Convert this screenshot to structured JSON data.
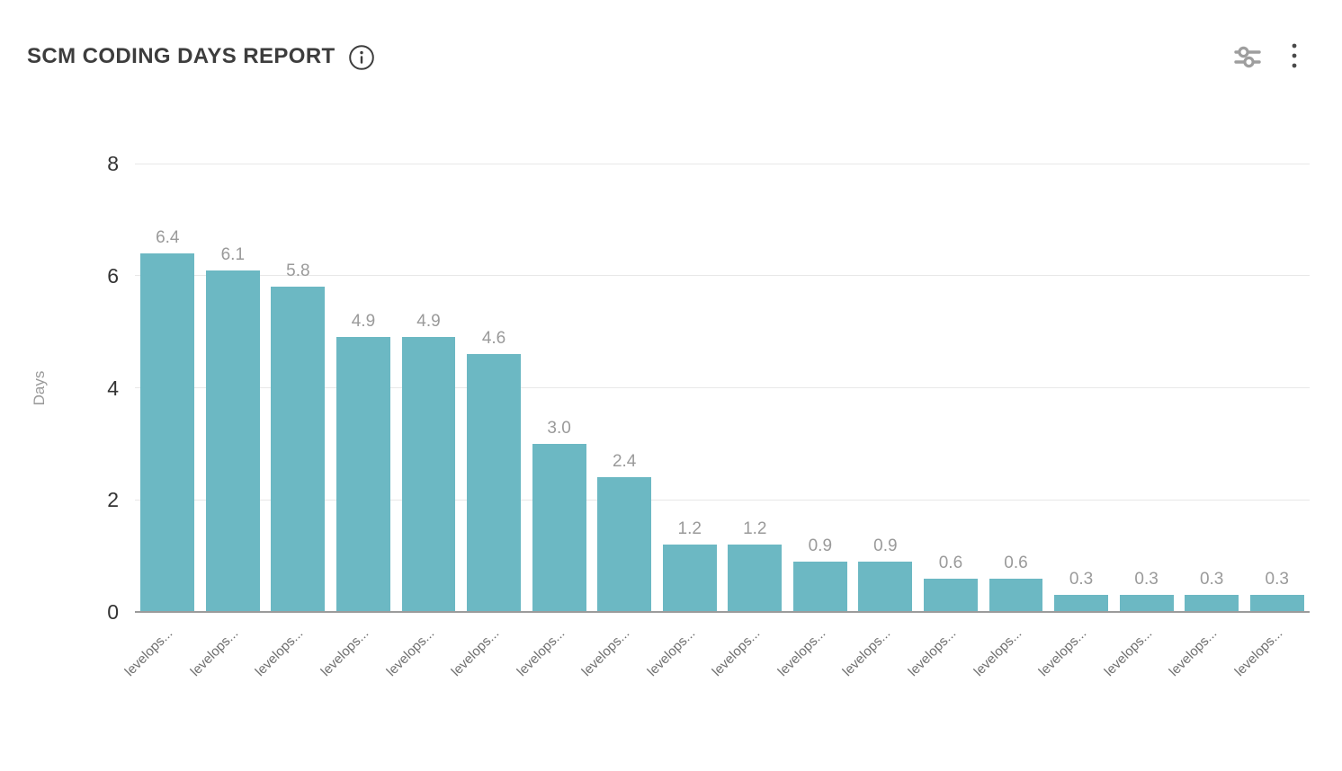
{
  "header": {
    "title": "SCM CODING DAYS REPORT"
  },
  "chart_data": {
    "type": "bar",
    "title": "SCM CODING DAYS REPORT",
    "xlabel": "",
    "ylabel": "Days",
    "ylim": [
      0,
      8
    ],
    "yticks": [
      0,
      2,
      4,
      6,
      8
    ],
    "grid": true,
    "legend": false,
    "bar_color": "#6cb8c3",
    "value_label_color": "#9a9a9a",
    "categories": [
      "levelops...",
      "levelops...",
      "levelops...",
      "levelops...",
      "levelops...",
      "levelops...",
      "levelops...",
      "levelops...",
      "levelops...",
      "levelops...",
      "levelops...",
      "levelops...",
      "levelops...",
      "levelops...",
      "levelops...",
      "levelops...",
      "levelops...",
      "levelops..."
    ],
    "values": [
      6.4,
      6.1,
      5.8,
      4.9,
      4.9,
      4.6,
      3.0,
      2.4,
      1.2,
      1.2,
      0.9,
      0.9,
      0.6,
      0.6,
      0.3,
      0.3,
      0.3,
      0.3
    ]
  }
}
